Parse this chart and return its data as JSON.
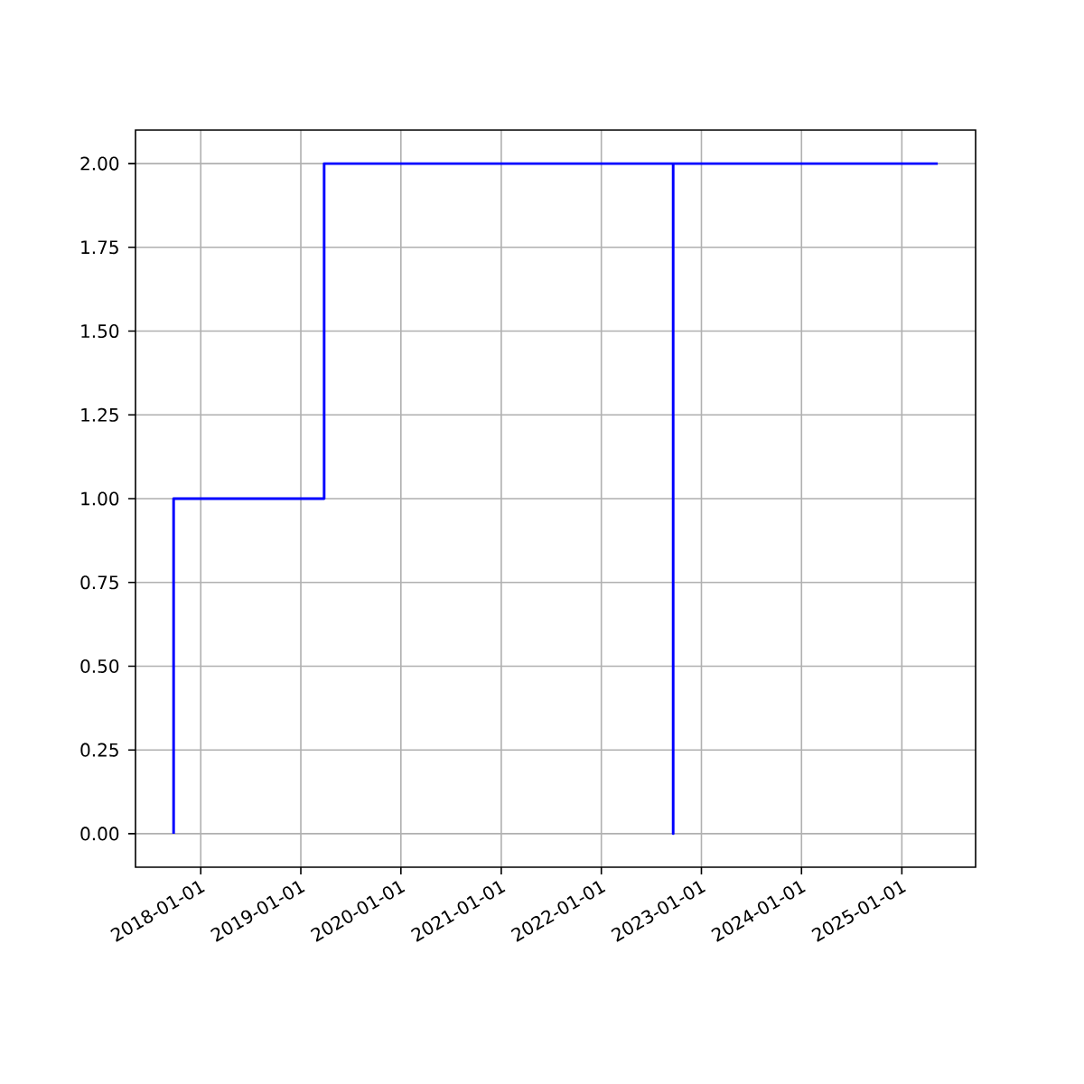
{
  "chart_data": {
    "type": "step",
    "x": [
      "2017-09-24",
      "2017-09-24",
      "2019-03-27",
      "2022-09-20",
      "2022-09-20",
      "2025-05-12"
    ],
    "values": [
      0,
      1,
      2,
      0,
      2,
      2
    ],
    "color": "#0000ff",
    "xlim": [
      "2017-05-08",
      "2025-09-27"
    ],
    "xticks": [
      "2018-01-01",
      "2019-01-01",
      "2020-01-01",
      "2021-01-01",
      "2022-01-01",
      "2023-01-01",
      "2024-01-01",
      "2025-01-01"
    ],
    "ylim": [
      -0.1,
      2.1
    ],
    "yticks": [
      {
        "value": 0,
        "label": "0.00"
      },
      {
        "value": 0.25,
        "label": "0.25"
      },
      {
        "value": 0.5,
        "label": "0.50"
      },
      {
        "value": 0.75,
        "label": "0.75"
      },
      {
        "value": 1,
        "label": "1.00"
      },
      {
        "value": 1.25,
        "label": "1.25"
      },
      {
        "value": 1.5,
        "label": "1.50"
      },
      {
        "value": 1.75,
        "label": "1.75"
      },
      {
        "value": 2,
        "label": "2.00"
      }
    ],
    "grid": true
  }
}
